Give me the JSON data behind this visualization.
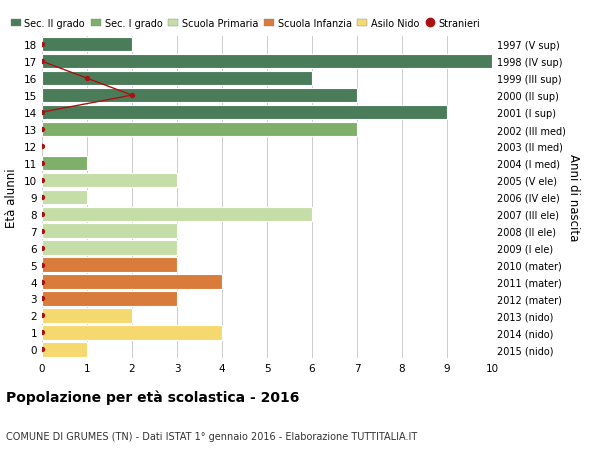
{
  "ages": [
    18,
    17,
    16,
    15,
    14,
    13,
    12,
    11,
    10,
    9,
    8,
    7,
    6,
    5,
    4,
    3,
    2,
    1,
    0
  ],
  "right_labels": [
    "1997 (V sup)",
    "1998 (IV sup)",
    "1999 (III sup)",
    "2000 (II sup)",
    "2001 (I sup)",
    "2002 (III med)",
    "2003 (II med)",
    "2004 (I med)",
    "2005 (V ele)",
    "2006 (IV ele)",
    "2007 (III ele)",
    "2008 (II ele)",
    "2009 (I ele)",
    "2010 (mater)",
    "2011 (mater)",
    "2012 (mater)",
    "2013 (nido)",
    "2014 (nido)",
    "2015 (nido)"
  ],
  "bar_values": [
    2,
    10,
    6,
    7,
    9,
    7,
    0,
    1,
    3,
    1,
    6,
    3,
    3,
    3,
    4,
    3,
    2,
    4,
    1
  ],
  "bar_colors": [
    "#4a7c59",
    "#4a7c59",
    "#4a7c59",
    "#4a7c59",
    "#4a7c59",
    "#7fb069",
    "#7fb069",
    "#7fb069",
    "#c5dea8",
    "#c5dea8",
    "#c5dea8",
    "#c5dea8",
    "#c5dea8",
    "#d97b3a",
    "#d97b3a",
    "#d97b3a",
    "#f5d86e",
    "#f5d86e",
    "#f5d86e"
  ],
  "stranieri_line_ages": [
    17,
    16,
    15,
    14
  ],
  "stranieri_line_x": [
    0,
    1,
    2,
    0
  ],
  "stranieri_all_ages": [
    18,
    17,
    16,
    15,
    14,
    13,
    12,
    11,
    10,
    9,
    8,
    7,
    6,
    5,
    4,
    3,
    2,
    1,
    0
  ],
  "stranieri_all_x": [
    0,
    0,
    1,
    2,
    0,
    0,
    0,
    0,
    0,
    0,
    0,
    0,
    0,
    0,
    0,
    0,
    0,
    0,
    0
  ],
  "legend_labels": [
    "Sec. II grado",
    "Sec. I grado",
    "Scuola Primaria",
    "Scuola Infanzia",
    "Asilo Nido",
    "Stranieri"
  ],
  "legend_colors": [
    "#4a7c59",
    "#7fb069",
    "#c5dea8",
    "#d97b3a",
    "#f5d86e",
    "#cc2222"
  ],
  "ylabel": "Età alunni",
  "ylabel_right": "Anni di nascita",
  "title": "Popolazione per età scolastica - 2016",
  "subtitle": "COMUNE DI GRUMES (TN) - Dati ISTAT 1° gennaio 2016 - Elaborazione TUTTITALIA.IT",
  "xlim": [
    0,
    10
  ],
  "bar_height": 0.85,
  "grid_color": "#cccccc",
  "stranieri_color": "#aa1111",
  "stranieri_line_color": "#aa1111",
  "bg_color": "#f5f5f5"
}
